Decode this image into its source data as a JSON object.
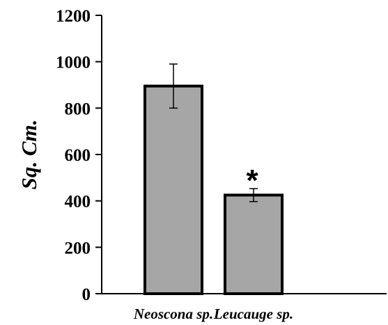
{
  "chart_data": {
    "type": "bar",
    "categories": [
      "Neoscona sp.",
      "Leucauge sp."
    ],
    "values": [
      895,
      425
    ],
    "errors": [
      95,
      28
    ],
    "annotations": [
      "",
      "*"
    ],
    "title": "",
    "xlabel": "",
    "ylabel": "Sq. Cm.",
    "ylim": [
      0,
      1200
    ],
    "yticks": [
      0,
      200,
      400,
      600,
      800,
      1000,
      1200
    ],
    "grid": false,
    "legend": "none",
    "colors": {
      "bar_fill": "#a6a6a6",
      "bar_stroke": "#000000",
      "axis": "#000000"
    }
  }
}
